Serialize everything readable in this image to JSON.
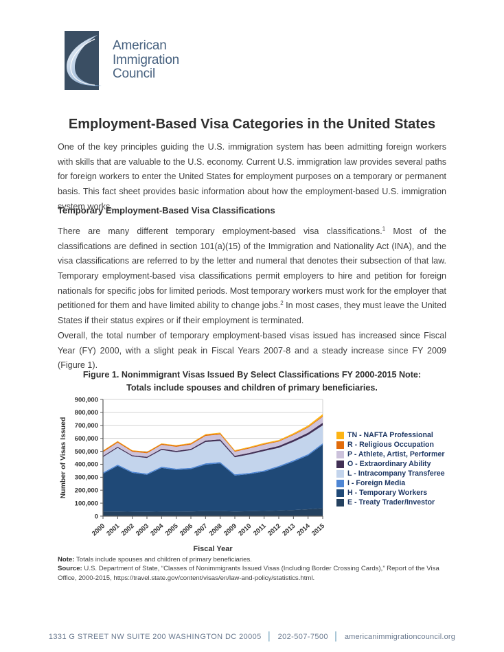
{
  "logo": {
    "line1": "American",
    "line2": "Immigration",
    "line3": "Council",
    "mark_color": "#3a4e63",
    "swoosh_color": "#9db8d4"
  },
  "title": "Employment-Based Visa Categories in the United States",
  "intro": "One of the key principles guiding the U.S. immigration system has been admitting foreign workers with skills that are valuable to the U.S. economy. Current U.S. immigration law provides several paths for foreign workers to enter the United States for employment purposes on a temporary or permanent basis. This fact sheet provides basic information about how the employment-based U.S. immigration system works.",
  "section1": {
    "heading": "Temporary Employment-Based Visa Classifications",
    "para_classifications": {
      "t1": "There are many different temporary employment-based visa classifications.",
      "fn1": "1",
      "t2": "  Most of the classifications are defined in section 101(a)(15) of the Immigration and Nationality Act (INA), and the visa classifications are referred to by the letter and numeral that denotes their subsection of that law. Temporary employment-based visa classifications permit employers to hire and petition for foreign nationals for specific jobs for limited periods. Most temporary workers must work for the employer that petitioned for them and have limited ability to change jobs.",
      "fn2": "2",
      "t3": " In most cases, they must leave the United States if their status expires or if their employment is terminated."
    },
    "para_overall": "Overall, the total number of temporary employment-based visas issued has increased since Fiscal Year (FY) 2000, with a slight peak in Fiscal Years 2007-8 and a steady increase since FY 2009 (Figure 1)."
  },
  "figure": {
    "caption": "Figure 1. Nonimmigrant Visas Issued By Select Classifications  FY 2000-2015 Note: Totals include spouses and children of primary beneficiaries.",
    "note_label": "Note:",
    "note_text": " Totals include spouses and children of primary beneficiaries.",
    "source_label": "Source:",
    "source_text": " U.S. Department of State, “Classes of Nonimmigrants Issued Visas (Including Border Crossing Cards),” Report of the Visa Office, 2000-2015, https://travel.state.gov/content/visas/en/law-and-policy/statistics.html."
  },
  "chart_data": {
    "type": "area",
    "stacked": true,
    "title": "",
    "xlabel": "Fiscal Year",
    "ylabel": "Number of Visas Issued",
    "ylim": [
      0,
      900000
    ],
    "ytick_step": 100000,
    "grid": true,
    "legend_position": "right",
    "x": [
      2000,
      2001,
      2002,
      2003,
      2004,
      2005,
      2006,
      2007,
      2008,
      2009,
      2010,
      2011,
      2012,
      2013,
      2014,
      2015
    ],
    "series_note": "series listed bottom-to-top in stack order; legend shows top series first",
    "series": [
      {
        "name": "E - Treaty Trader/Investor",
        "color": "#24415f",
        "values": [
          35000,
          36000,
          34000,
          33000,
          35000,
          35000,
          36000,
          39000,
          39000,
          36000,
          38000,
          40000,
          43000,
          47000,
          53000,
          61000
        ]
      },
      {
        "name": "H - Temporary Workers",
        "color": "#1f4977",
        "values": [
          292000,
          352000,
          300000,
          286000,
          337000,
          322000,
          327000,
          358000,
          368000,
          277000,
          286000,
          303000,
          335000,
          373000,
          415000,
          490000
        ]
      },
      {
        "name": "I - Foreign Media",
        "color": "#4e86d4",
        "values": [
          9000,
          9000,
          9000,
          9000,
          9000,
          9000,
          9000,
          10000,
          10000,
          9000,
          9000,
          9000,
          9000,
          10000,
          10000,
          11000
        ]
      },
      {
        "name": "L - Intracompany Transferee",
        "color": "#c3d4ec",
        "values": [
          120000,
          130000,
          118000,
          121000,
          130000,
          128000,
          137000,
          165000,
          163000,
          132000,
          143000,
          150000,
          140000,
          143000,
          148000,
          138000
        ]
      },
      {
        "name": "O - Extraordinary Ability",
        "color": "#413055",
        "values": [
          8000,
          8000,
          8000,
          8000,
          9000,
          9000,
          10000,
          11000,
          12000,
          11000,
          12000,
          13000,
          14000,
          16000,
          17000,
          20000
        ]
      },
      {
        "name": "P - Athlete, Artist, Performer",
        "color": "#ccc2db",
        "values": [
          30000,
          32000,
          28000,
          28000,
          30000,
          32000,
          33000,
          36000,
          38000,
          32000,
          34000,
          36000,
          34000,
          36000,
          40000,
          46000
        ]
      },
      {
        "name": "R - Religious Occupation",
        "color": "#e16b0a",
        "values": [
          9000,
          9000,
          8000,
          8000,
          8000,
          8000,
          8000,
          8000,
          8000,
          6000,
          6000,
          6000,
          5000,
          5000,
          5000,
          6000
        ]
      },
      {
        "name": "TN - NAFTA Professional",
        "color": "#fdb415",
        "values": [
          3000,
          3000,
          3000,
          3000,
          3000,
          4000,
          4000,
          5000,
          6000,
          5000,
          6000,
          7000,
          7000,
          9000,
          11000,
          15000
        ]
      }
    ]
  },
  "footer": {
    "address": "1331 G STREET NW SUITE 200 WASHINGTON DC 20005",
    "separator": "│",
    "phone": "202-507-7500",
    "website": "americanimmigrationcouncil.org"
  }
}
